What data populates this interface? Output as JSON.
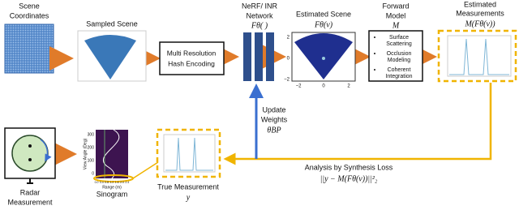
{
  "nodes": {
    "scene_coordinates": {
      "label": [
        "Scene",
        "Coordinates"
      ]
    },
    "sampled_scene": {
      "label": "Sampled Scene"
    },
    "hash_encoding": {
      "label": [
        "Multi Resolution",
        "Hash Encoding"
      ]
    },
    "network": {
      "label": [
        "NeRF/ INR",
        "Network"
      ],
      "symbol": "Fθ( )"
    },
    "estimated_scene": {
      "label": "Estimated Scene",
      "symbol": "Fθ(v)",
      "xticks": [
        "−2",
        "0",
        "2"
      ],
      "yticks": [
        "2",
        "0",
        "−2"
      ]
    },
    "forward_model": {
      "label": [
        "Forward",
        "Model"
      ],
      "symbol": "M",
      "bullets": [
        [
          "Surface",
          "Scattering"
        ],
        [
          "Occlusion",
          "Modeling"
        ],
        [
          "Coherent",
          "Integration"
        ]
      ]
    },
    "estimated_measurements": {
      "label": [
        "Estimated",
        "Measurements"
      ],
      "symbol": "M(Fθ(v))"
    },
    "update_weights": {
      "label": [
        "Update",
        "Weights"
      ],
      "symbol": "θBP"
    },
    "loss": {
      "label": "Analysis by Synthesis Loss",
      "symbol": "||y − M(Fθ(v))||²₂"
    },
    "radar": {
      "label": [
        "Radar",
        "Measurement"
      ]
    },
    "sinogram": {
      "label": "Sinogram",
      "ylabel": "View Angle (Deg)",
      "xlabel": "Range (m)",
      "yticks": [
        "0",
        "100",
        "200",
        "300"
      ],
      "xticks": [
        "0.0",
        "0.4",
        "0.8",
        "1.2",
        "1.6",
        "2.0",
        "2.4"
      ]
    },
    "true_measurement": {
      "label": "True Measurement",
      "symbol": "y"
    }
  }
}
